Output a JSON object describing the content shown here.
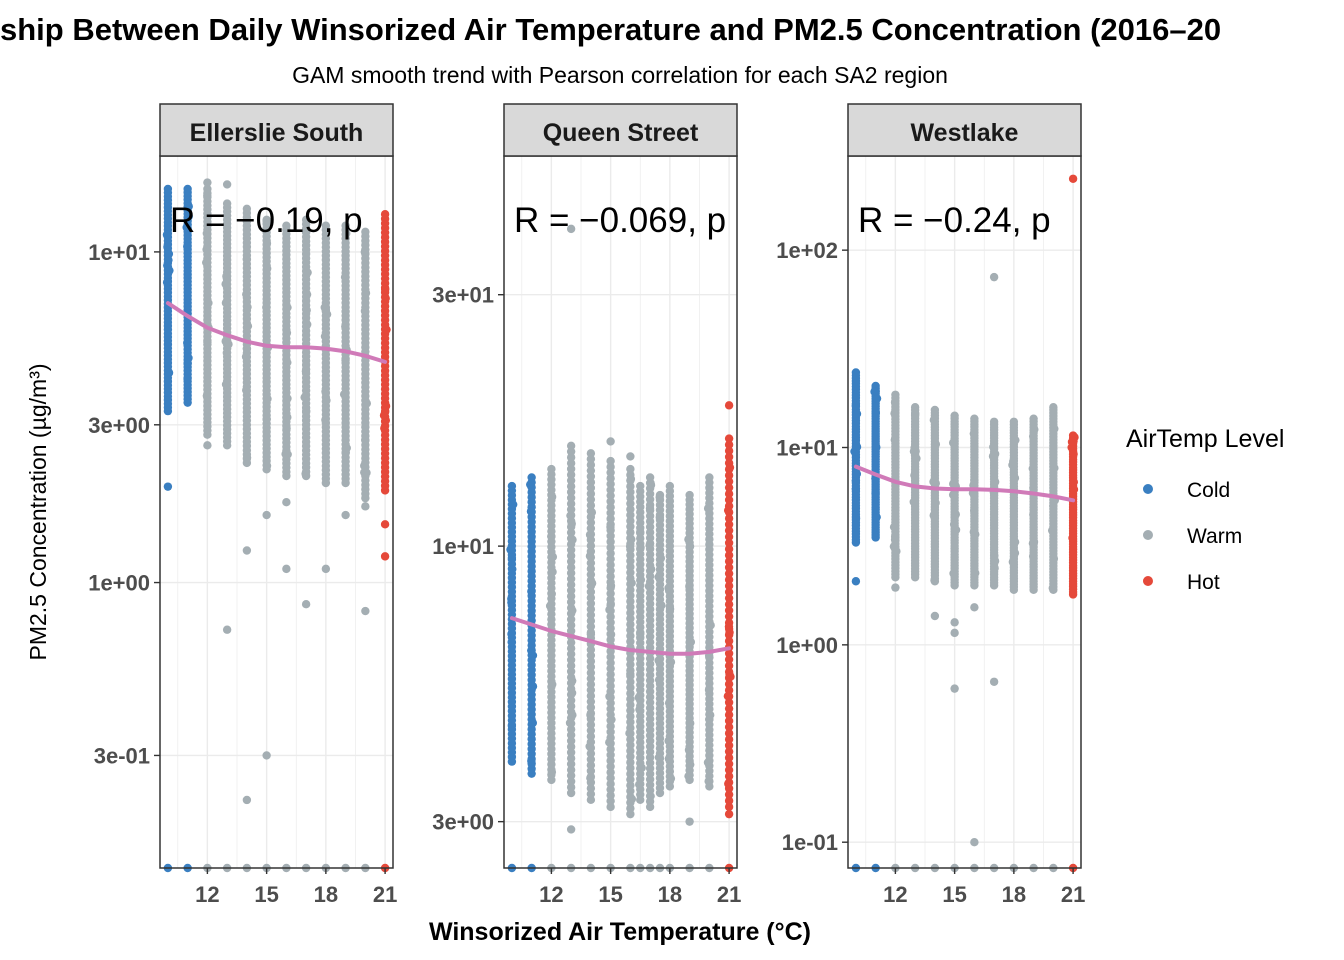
{
  "title": "ship Between Daily Winsorized Air Temperature and PM2.5 Concentration (2016–20",
  "subtitle": "GAM smooth trend with Pearson correlation for each SA2 region",
  "xlabel": "Winsorized Air Temperature (°C)",
  "ylabel": "PM2.5 Concentration (µg/m³)",
  "legend": {
    "title": "AirTemp Level",
    "items": [
      {
        "label": "Cold",
        "color": "#3a7fc1"
      },
      {
        "label": "Warm",
        "color": "#a4aeb3"
      },
      {
        "label": "Hot",
        "color": "#e5493a"
      }
    ]
  },
  "colors": {
    "smooth": "#d07ab8",
    "strip_bg": "#d9d9d9",
    "grid": "#ebebeb"
  },
  "chart_data": {
    "type": "scatter",
    "facets": [
      {
        "name": "Ellerslie South",
        "corr_label": "R = −0.19, p",
        "y_log": true,
        "yticks": [
          {
            "v": 0.3,
            "label": "3e-01"
          },
          {
            "v": 1,
            "label": "1e+00"
          },
          {
            "v": 3,
            "label": "3e+00"
          },
          {
            "v": 10,
            "label": "1e+01"
          }
        ],
        "xticks": [
          12,
          15,
          18,
          21
        ],
        "xlim": [
          9.6,
          21.4
        ],
        "ylim": [
          0.137,
          19.5
        ],
        "smooth": [
          [
            10,
            7.0
          ],
          [
            11,
            6.4
          ],
          [
            12,
            5.9
          ],
          [
            13,
            5.6
          ],
          [
            14,
            5.35
          ],
          [
            15,
            5.2
          ],
          [
            16,
            5.15
          ],
          [
            17,
            5.15
          ],
          [
            18,
            5.1
          ],
          [
            19,
            5.0
          ],
          [
            20,
            4.85
          ],
          [
            21,
            4.65
          ]
        ],
        "columns": [
          {
            "x": 10,
            "cls": "Cold",
            "lo": 3.3,
            "hi": 15.5
          },
          {
            "x": 11,
            "cls": "Cold",
            "lo": 3.5,
            "hi": 15.5
          },
          {
            "x": 12,
            "cls": "Warm",
            "lo": 2.8,
            "hi": 15.5
          },
          {
            "x": 13,
            "cls": "Warm",
            "lo": 2.6,
            "hi": 14.0
          },
          {
            "x": 14,
            "cls": "Warm",
            "lo": 2.3,
            "hi": 13.5
          },
          {
            "x": 15,
            "cls": "Warm",
            "lo": 2.2,
            "hi": 12.5
          },
          {
            "x": 16,
            "cls": "Warm",
            "lo": 2.1,
            "hi": 12.0
          },
          {
            "x": 17,
            "cls": "Warm",
            "lo": 2.1,
            "hi": 12.5
          },
          {
            "x": 18,
            "cls": "Warm",
            "lo": 2.0,
            "hi": 12.0
          },
          {
            "x": 19,
            "cls": "Warm",
            "lo": 2.0,
            "hi": 12.0
          },
          {
            "x": 20,
            "cls": "Warm",
            "lo": 1.8,
            "hi": 11.5
          },
          {
            "x": 21,
            "cls": "Hot",
            "lo": 1.9,
            "hi": 13.0
          }
        ],
        "outliers": [
          {
            "x": 10,
            "y": 1.95,
            "cls": "Cold"
          },
          {
            "x": 11,
            "y": 4.6,
            "cls": "Cold"
          },
          {
            "x": 12,
            "y": 16.2,
            "cls": "Warm"
          },
          {
            "x": 12,
            "y": 2.6,
            "cls": "Warm"
          },
          {
            "x": 13,
            "y": 0.72,
            "cls": "Warm"
          },
          {
            "x": 13,
            "y": 16.0,
            "cls": "Warm"
          },
          {
            "x": 14,
            "y": 1.25,
            "cls": "Warm"
          },
          {
            "x": 14,
            "y": 0.22,
            "cls": "Warm"
          },
          {
            "x": 15,
            "y": 0.3,
            "cls": "Warm"
          },
          {
            "x": 15,
            "y": 1.6,
            "cls": "Warm"
          },
          {
            "x": 16,
            "y": 1.1,
            "cls": "Warm"
          },
          {
            "x": 16,
            "y": 1.75,
            "cls": "Warm"
          },
          {
            "x": 17,
            "y": 0.86,
            "cls": "Warm"
          },
          {
            "x": 18,
            "y": 1.1,
            "cls": "Warm"
          },
          {
            "x": 19,
            "y": 1.6,
            "cls": "Warm"
          },
          {
            "x": 20,
            "y": 0.82,
            "cls": "Warm"
          },
          {
            "x": 20,
            "y": 1.7,
            "cls": "Warm"
          },
          {
            "x": 21,
            "y": 1.2,
            "cls": "Hot"
          },
          {
            "x": 21,
            "y": 1.5,
            "cls": "Hot"
          }
        ],
        "floor_y": 0.137
      },
      {
        "name": "Queen Street",
        "corr_label": "R = −0.069, p",
        "y_log": true,
        "yticks": [
          {
            "v": 3,
            "label": "3e+00"
          },
          {
            "v": 10,
            "label": "1e+01"
          },
          {
            "v": 30,
            "label": "3e+01"
          }
        ],
        "xticks": [
          12,
          15,
          18,
          21
        ],
        "xlim": [
          9.6,
          21.4
        ],
        "ylim": [
          2.45,
          55
        ],
        "smooth": [
          [
            10,
            7.3
          ],
          [
            11,
            7.1
          ],
          [
            12,
            6.9
          ],
          [
            13,
            6.75
          ],
          [
            14,
            6.6
          ],
          [
            15,
            6.45
          ],
          [
            16,
            6.35
          ],
          [
            17,
            6.3
          ],
          [
            18,
            6.25
          ],
          [
            19,
            6.25
          ],
          [
            20,
            6.3
          ],
          [
            21,
            6.4
          ]
        ],
        "columns": [
          {
            "x": 10,
            "cls": "Cold",
            "lo": 3.9,
            "hi": 13.0
          },
          {
            "x": 11,
            "cls": "Cold",
            "lo": 3.7,
            "hi": 13.5
          },
          {
            "x": 12,
            "cls": "Warm",
            "lo": 3.6,
            "hi": 14.0
          },
          {
            "x": 13,
            "cls": "Warm",
            "lo": 3.4,
            "hi": 15.5
          },
          {
            "x": 14,
            "cls": "Warm",
            "lo": 3.3,
            "hi": 15.0
          },
          {
            "x": 15,
            "cls": "Warm",
            "lo": 3.2,
            "hi": 14.5
          },
          {
            "x": 16,
            "cls": "Warm",
            "lo": 3.1,
            "hi": 14.0
          },
          {
            "x": 16.5,
            "cls": "Warm",
            "lo": 3.3,
            "hi": 13.0
          },
          {
            "x": 17,
            "cls": "Warm",
            "lo": 3.2,
            "hi": 13.5
          },
          {
            "x": 17.5,
            "cls": "Warm",
            "lo": 3.4,
            "hi": 12.5
          },
          {
            "x": 18,
            "cls": "Warm",
            "lo": 3.5,
            "hi": 13.0
          },
          {
            "x": 19,
            "cls": "Warm",
            "lo": 3.6,
            "hi": 12.5
          },
          {
            "x": 20,
            "cls": "Warm",
            "lo": 3.5,
            "hi": 13.5
          },
          {
            "x": 21,
            "cls": "Hot",
            "lo": 3.2,
            "hi": 16.0
          }
        ],
        "outliers": [
          {
            "x": 10,
            "y": 9.5,
            "cls": "Cold"
          },
          {
            "x": 13,
            "y": 2.9,
            "cls": "Warm"
          },
          {
            "x": 13,
            "y": 40.0,
            "cls": "Warm"
          },
          {
            "x": 15,
            "y": 15.8,
            "cls": "Warm"
          },
          {
            "x": 16,
            "y": 14.8,
            "cls": "Warm"
          },
          {
            "x": 19,
            "y": 3.0,
            "cls": "Warm"
          },
          {
            "x": 21,
            "y": 3.1,
            "cls": "Hot"
          },
          {
            "x": 21,
            "y": 18.5,
            "cls": "Hot"
          }
        ],
        "floor_y": 2.45
      },
      {
        "name": "Westlake",
        "corr_label": "R = −0.24, p",
        "y_log": true,
        "yticks": [
          {
            "v": 0.1,
            "label": "1e-01"
          },
          {
            "v": 1,
            "label": "1e+00"
          },
          {
            "v": 10,
            "label": "1e+01"
          },
          {
            "v": 100,
            "label": "1e+02"
          }
        ],
        "xticks": [
          12,
          15,
          18,
          21
        ],
        "xlim": [
          9.6,
          21.4
        ],
        "ylim": [
          0.074,
          300
        ],
        "smooth": [
          [
            10,
            8.0
          ],
          [
            11,
            7.3
          ],
          [
            12,
            6.7
          ],
          [
            13,
            6.35
          ],
          [
            14,
            6.2
          ],
          [
            15,
            6.15
          ],
          [
            16,
            6.15
          ],
          [
            17,
            6.1
          ],
          [
            18,
            6.0
          ],
          [
            19,
            5.85
          ],
          [
            20,
            5.65
          ],
          [
            21,
            5.4
          ]
        ],
        "columns": [
          {
            "x": 10,
            "cls": "Cold",
            "lo": 3.3,
            "hi": 24.0
          },
          {
            "x": 11,
            "cls": "Cold",
            "lo": 3.5,
            "hi": 20.5
          },
          {
            "x": 12,
            "cls": "Warm",
            "lo": 2.2,
            "hi": 18.5
          },
          {
            "x": 13,
            "cls": "Warm",
            "lo": 2.2,
            "hi": 16.0
          },
          {
            "x": 14,
            "cls": "Warm",
            "lo": 2.1,
            "hi": 15.5
          },
          {
            "x": 15,
            "cls": "Warm",
            "lo": 2.0,
            "hi": 14.5
          },
          {
            "x": 16,
            "cls": "Warm",
            "lo": 2.0,
            "hi": 14.0
          },
          {
            "x": 17,
            "cls": "Warm",
            "lo": 2.0,
            "hi": 13.5
          },
          {
            "x": 18,
            "cls": "Warm",
            "lo": 1.9,
            "hi": 13.5
          },
          {
            "x": 19,
            "cls": "Warm",
            "lo": 1.9,
            "hi": 14.0
          },
          {
            "x": 20,
            "cls": "Warm",
            "lo": 1.9,
            "hi": 15.5
          },
          {
            "x": 21,
            "cls": "Hot",
            "lo": 1.8,
            "hi": 11.5
          }
        ],
        "outliers": [
          {
            "x": 10,
            "y": 2.1,
            "cls": "Cold"
          },
          {
            "x": 12,
            "y": 1.95,
            "cls": "Warm"
          },
          {
            "x": 14,
            "y": 1.4,
            "cls": "Warm"
          },
          {
            "x": 15,
            "y": 1.3,
            "cls": "Warm"
          },
          {
            "x": 15,
            "y": 1.15,
            "cls": "Warm"
          },
          {
            "x": 15,
            "y": 0.6,
            "cls": "Warm"
          },
          {
            "x": 16,
            "y": 0.1,
            "cls": "Warm"
          },
          {
            "x": 16,
            "y": 1.55,
            "cls": "Warm"
          },
          {
            "x": 17,
            "y": 73.0,
            "cls": "Warm"
          },
          {
            "x": 17,
            "y": 0.65,
            "cls": "Warm"
          },
          {
            "x": 21,
            "y": 230.0,
            "cls": "Hot"
          },
          {
            "x": 20,
            "y": 16.0,
            "cls": "Warm"
          }
        ],
        "floor_y": 0.074
      }
    ]
  }
}
